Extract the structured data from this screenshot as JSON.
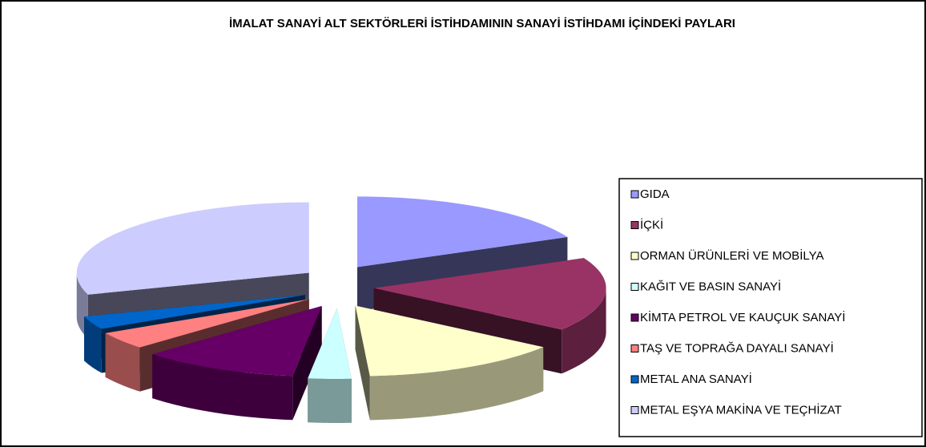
{
  "chart_data": {
    "type": "pie3d",
    "title": "İMALAT SANAYİ ALT SEKTÖRLERİ İSTİHDAMININ SANAYİ İSTİHDAMI İÇİNDEKİ PAYLARI",
    "categories": [
      "GIDA",
      "İÇKİ",
      "ORMAN ÜRÜNLERİ VE MOBİLYA",
      "KAĞIT VE BASIN SANAYİ",
      "KİMTA PETROL VE KAUÇUK SANAYİ",
      "TAŞ VE TOPRAĞA DAYALI SANAYİ",
      "METAL ANA SANAYİ",
      "METAL EŞYA MAKİNA VE TEÇHİZAT"
    ],
    "values": [
      18,
      17,
      14,
      3,
      11,
      4,
      3,
      30
    ],
    "colors": [
      "#9999ff",
      "#993366",
      "#ffffcc",
      "#ccffff",
      "#660066",
      "#ff8080",
      "#0066cc",
      "#ccccff"
    ],
    "legend": "right"
  }
}
